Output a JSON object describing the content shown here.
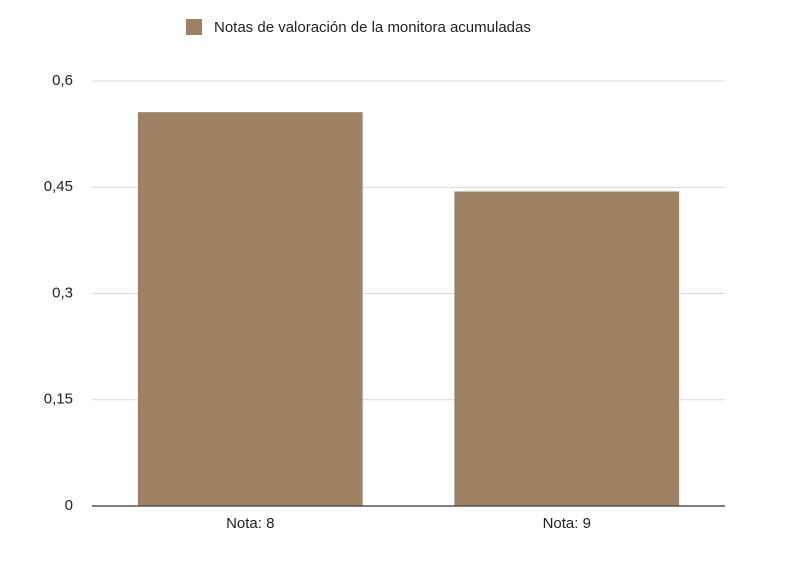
{
  "chart_data": {
    "type": "bar",
    "categories": [
      "Nota: 8",
      "Nota: 9"
    ],
    "series": [
      {
        "name": "Notas de valoración de la monitora acumuladas",
        "color": "#9e8163",
        "values": [
          0.556,
          0.444
        ]
      }
    ],
    "ylim": [
      0,
      0.6
    ],
    "yticks": [
      0,
      {
        "value": 0.15,
        "label": "0,15"
      },
      {
        "value": 0.3,
        "label": "0,3"
      },
      {
        "value": 0.45,
        "label": "0,45"
      },
      {
        "value": 0.6,
        "label": "0,6"
      }
    ],
    "grid": true,
    "legend": "top"
  }
}
